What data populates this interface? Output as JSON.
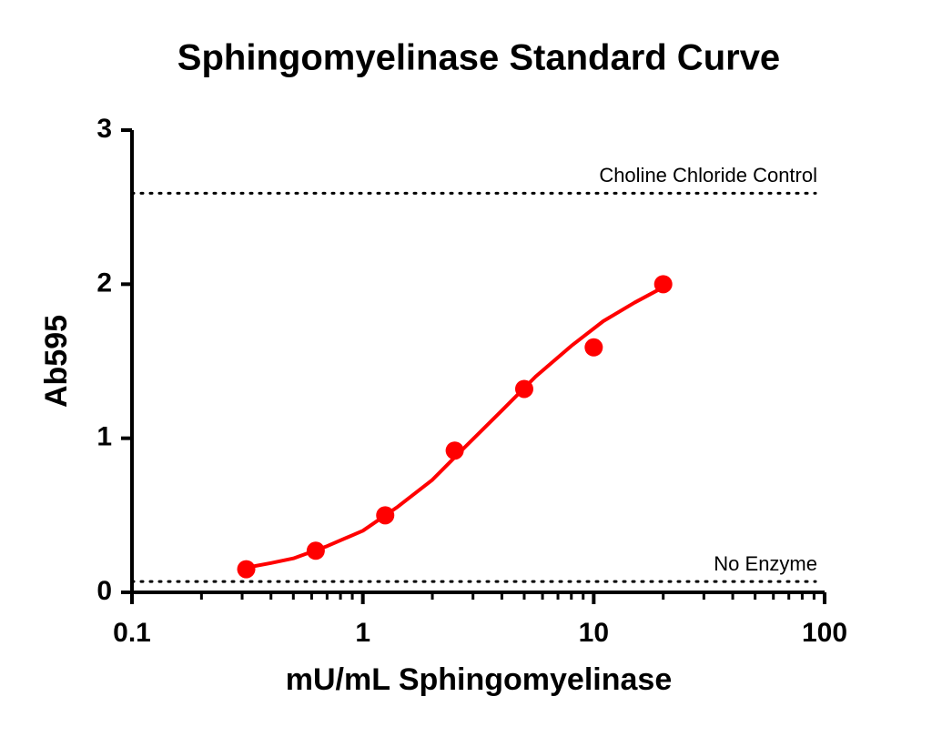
{
  "chart_data": {
    "type": "scatter",
    "title": "Sphingomyelinase Standard Curve",
    "x_label": "mU/mL Sphingomyelinase",
    "y_label": "Ab595",
    "xscale": "log",
    "xlim": [
      0.1,
      100
    ],
    "xticks": [
      0.1,
      1,
      10,
      100
    ],
    "xminorticks": [
      0.2,
      0.3,
      0.4,
      0.5,
      0.6,
      0.7,
      0.8,
      0.9,
      2,
      3,
      4,
      5,
      6,
      7,
      8,
      9,
      20,
      30,
      40,
      50,
      60,
      70,
      80,
      90
    ],
    "ylim": [
      0,
      3
    ],
    "yticks": [
      0,
      1,
      2,
      3
    ],
    "x": [
      0.3125,
      0.625,
      1.25,
      2.5,
      5,
      10,
      20
    ],
    "values": [
      0.15,
      0.27,
      0.5,
      0.92,
      1.32,
      1.59,
      2.0
    ],
    "color": "#ff0000",
    "curve": {
      "x": [
        0.3125,
        0.4,
        0.5,
        0.7,
        1,
        1.4,
        2,
        2.8,
        4,
        5.6,
        8,
        11,
        15,
        20
      ],
      "y": [
        0.16,
        0.19,
        0.22,
        0.3,
        0.4,
        0.55,
        0.73,
        0.95,
        1.18,
        1.4,
        1.6,
        1.76,
        1.88,
        1.98
      ]
    },
    "reference_lines": [
      {
        "label": "Choline Chloride Control",
        "value": 2.59
      },
      {
        "label": "No Enzyme",
        "value": 0.07
      }
    ]
  }
}
